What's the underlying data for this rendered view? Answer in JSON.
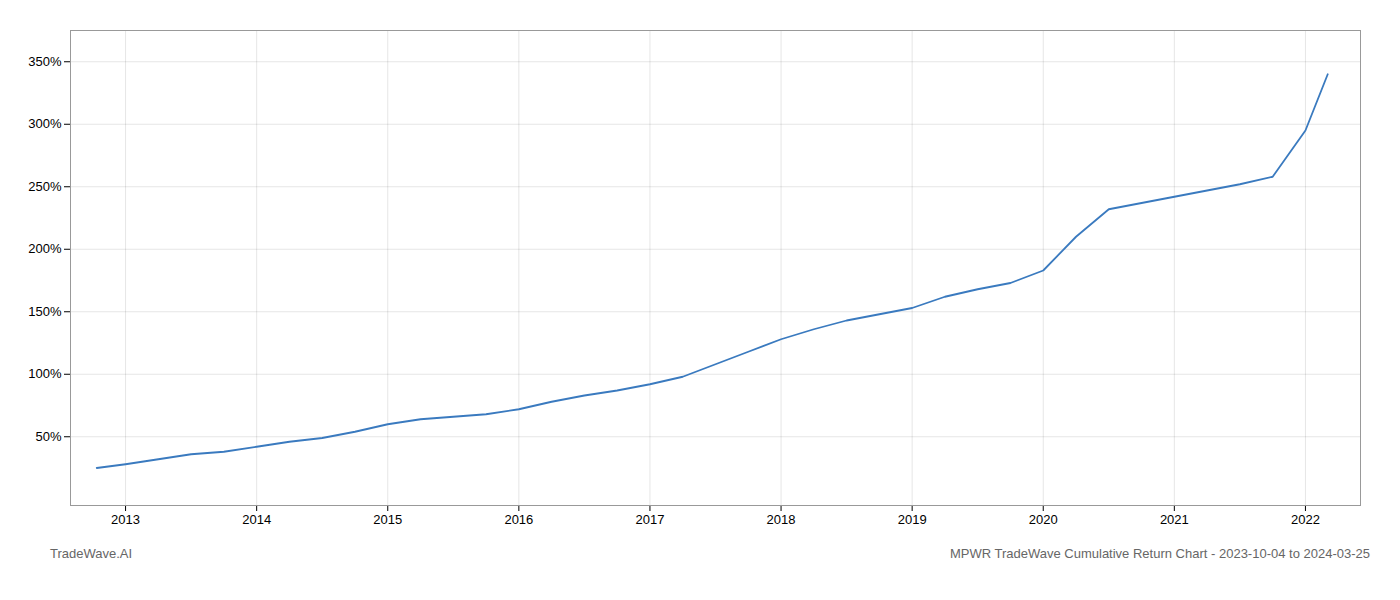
{
  "chart_data": {
    "type": "line",
    "title": "MPWR TradeWave Cumulative Return Chart - 2023-10-04 to 2024-03-25",
    "annotations": [
      "TradeWave.AI"
    ],
    "x": [
      2012.78,
      2013.0,
      2013.25,
      2013.5,
      2013.75,
      2014.0,
      2014.25,
      2014.5,
      2014.75,
      2015.0,
      2015.25,
      2015.5,
      2015.75,
      2016.0,
      2016.25,
      2016.5,
      2016.75,
      2017.0,
      2017.25,
      2017.5,
      2017.75,
      2018.0,
      2018.25,
      2018.5,
      2018.75,
      2019.0,
      2019.25,
      2019.5,
      2019.75,
      2020.0,
      2020.25,
      2020.5,
      2020.75,
      2021.0,
      2021.25,
      2021.5,
      2021.75,
      2022.0,
      2022.17
    ],
    "values": [
      25,
      28,
      32,
      36,
      38,
      42,
      46,
      49,
      54,
      60,
      64,
      66,
      68,
      72,
      78,
      83,
      87,
      92,
      98,
      108,
      118,
      128,
      136,
      143,
      148,
      153,
      162,
      168,
      173,
      183,
      210,
      232,
      237,
      242,
      247,
      252,
      258,
      295,
      340
    ],
    "color": "#3a7abf",
    "xlim": [
      2012.58,
      2022.42
    ],
    "xticks": [
      2013,
      2014,
      2015,
      2016,
      2017,
      2018,
      2019,
      2020,
      2021,
      2022
    ],
    "ylim": [
      -5,
      375
    ],
    "yticks": [
      {
        "value": 50,
        "label": "50%"
      },
      {
        "value": 100,
        "label": "100%"
      },
      {
        "value": 150,
        "label": "150%"
      },
      {
        "value": 200,
        "label": "200%"
      },
      {
        "value": 250,
        "label": "250%"
      },
      {
        "value": 300,
        "label": "300%"
      },
      {
        "value": 350,
        "label": "350%"
      }
    ],
    "grid": true
  }
}
